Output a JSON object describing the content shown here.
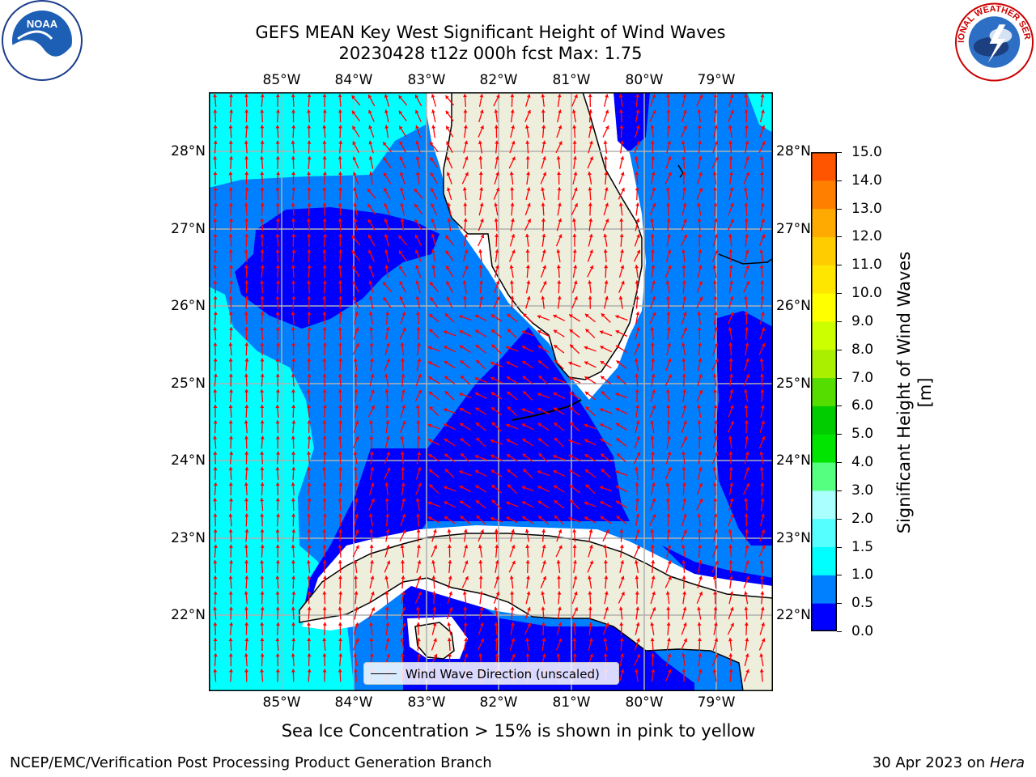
{
  "title_line1": "GEFS MEAN Key West Significant Height of Wind Waves",
  "title_line2": "20230428 t12z 000h fcst   Max: 1.75",
  "map": {
    "lon_ticks": [
      "85°W",
      "84°W",
      "83°W",
      "82°W",
      "81°W",
      "80°W",
      "79°W"
    ],
    "lat_ticks": [
      "28°N",
      "27°N",
      "26°N",
      "25°N",
      "24°N",
      "23°N",
      "22°N"
    ],
    "legend_label": "Wind Wave Direction (unscaled)",
    "colors": {
      "ocean_low": "#0000ff",
      "ocean_mid": "#0080ff",
      "ocean_high": "#00ffff",
      "land": "#eeeedd",
      "arrows": "#ff0000",
      "grid": "#b0b0b0"
    }
  },
  "colorbar": {
    "label": "Significant Height of Wind Waves [m]",
    "ticks": [
      "15.0",
      "14.0",
      "13.0",
      "12.0",
      "11.0",
      "10.0",
      "9.0",
      "8.0",
      "7.0",
      "6.0",
      "5.0",
      "4.0",
      "3.0",
      "2.0",
      "1.5",
      "1.0",
      "0.5",
      "0.0"
    ],
    "colors": [
      "#0000ff",
      "#0080ff",
      "#00ffff",
      "#55ffff",
      "#aaffff",
      "#55ff80",
      "#00e400",
      "#00cc00",
      "#55dd00",
      "#aaee00",
      "#ccff00",
      "#ffff00",
      "#ffe600",
      "#ffcc00",
      "#ffaa00",
      "#ff8000",
      "#ff5500",
      "#ff2a00",
      "#ff0000"
    ]
  },
  "subtitle": "Sea Ice Concentration > 15% is shown in pink to yellow",
  "footer_left": "NCEP/EMC/Verification Post Processing Product Generation Branch",
  "footer_right_prefix": "30 Apr 2023 on ",
  "footer_right_host": "Hera",
  "logos": {
    "noaa_text": "NOAA",
    "nws_text": "NATIONAL WEATHER SERVICE"
  }
}
